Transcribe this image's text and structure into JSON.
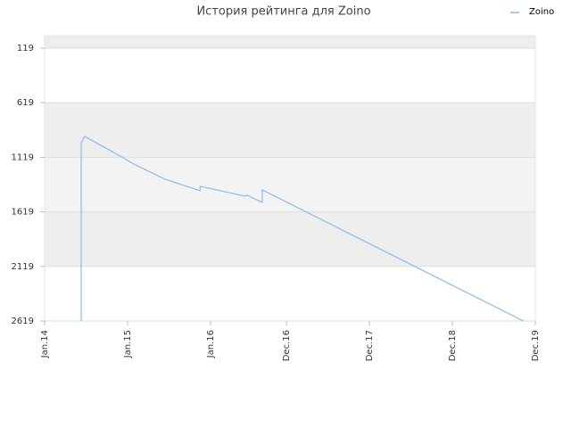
{
  "chart_data": {
    "type": "line",
    "title": "История рейтинга для Zoino",
    "x": [
      5.3,
      5.3,
      5.8,
      11.6,
      12.9,
      17.4,
      22.5,
      22.5,
      29.0,
      29.3,
      31.5,
      31.5,
      69.3
    ],
    "series": [
      {
        "name": "Zoino",
        "color": "#88bbee",
        "values": [
          2619,
          985,
          928,
          1132,
          1181,
          1320,
          1426,
          1385,
          1475,
          1467,
          1532,
          1418,
          2619
        ]
      }
    ],
    "xlim": [
      0,
      71
    ],
    "xticks": [
      {
        "value": 0,
        "label": "Jan.14"
      },
      {
        "value": 12,
        "label": "Jan.15"
      },
      {
        "value": 24,
        "label": "Jan.16"
      },
      {
        "value": 35,
        "label": "Dec.16"
      },
      {
        "value": 47,
        "label": "Dec.17"
      },
      {
        "value": 59,
        "label": "Dec.18"
      },
      {
        "value": 71,
        "label": "Dec.19"
      }
    ],
    "ylim": [
      2619,
      5
    ],
    "yticks": [
      119,
      619,
      1119,
      1619,
      2119,
      2619
    ],
    "grid": true,
    "legend": "upper right"
  }
}
